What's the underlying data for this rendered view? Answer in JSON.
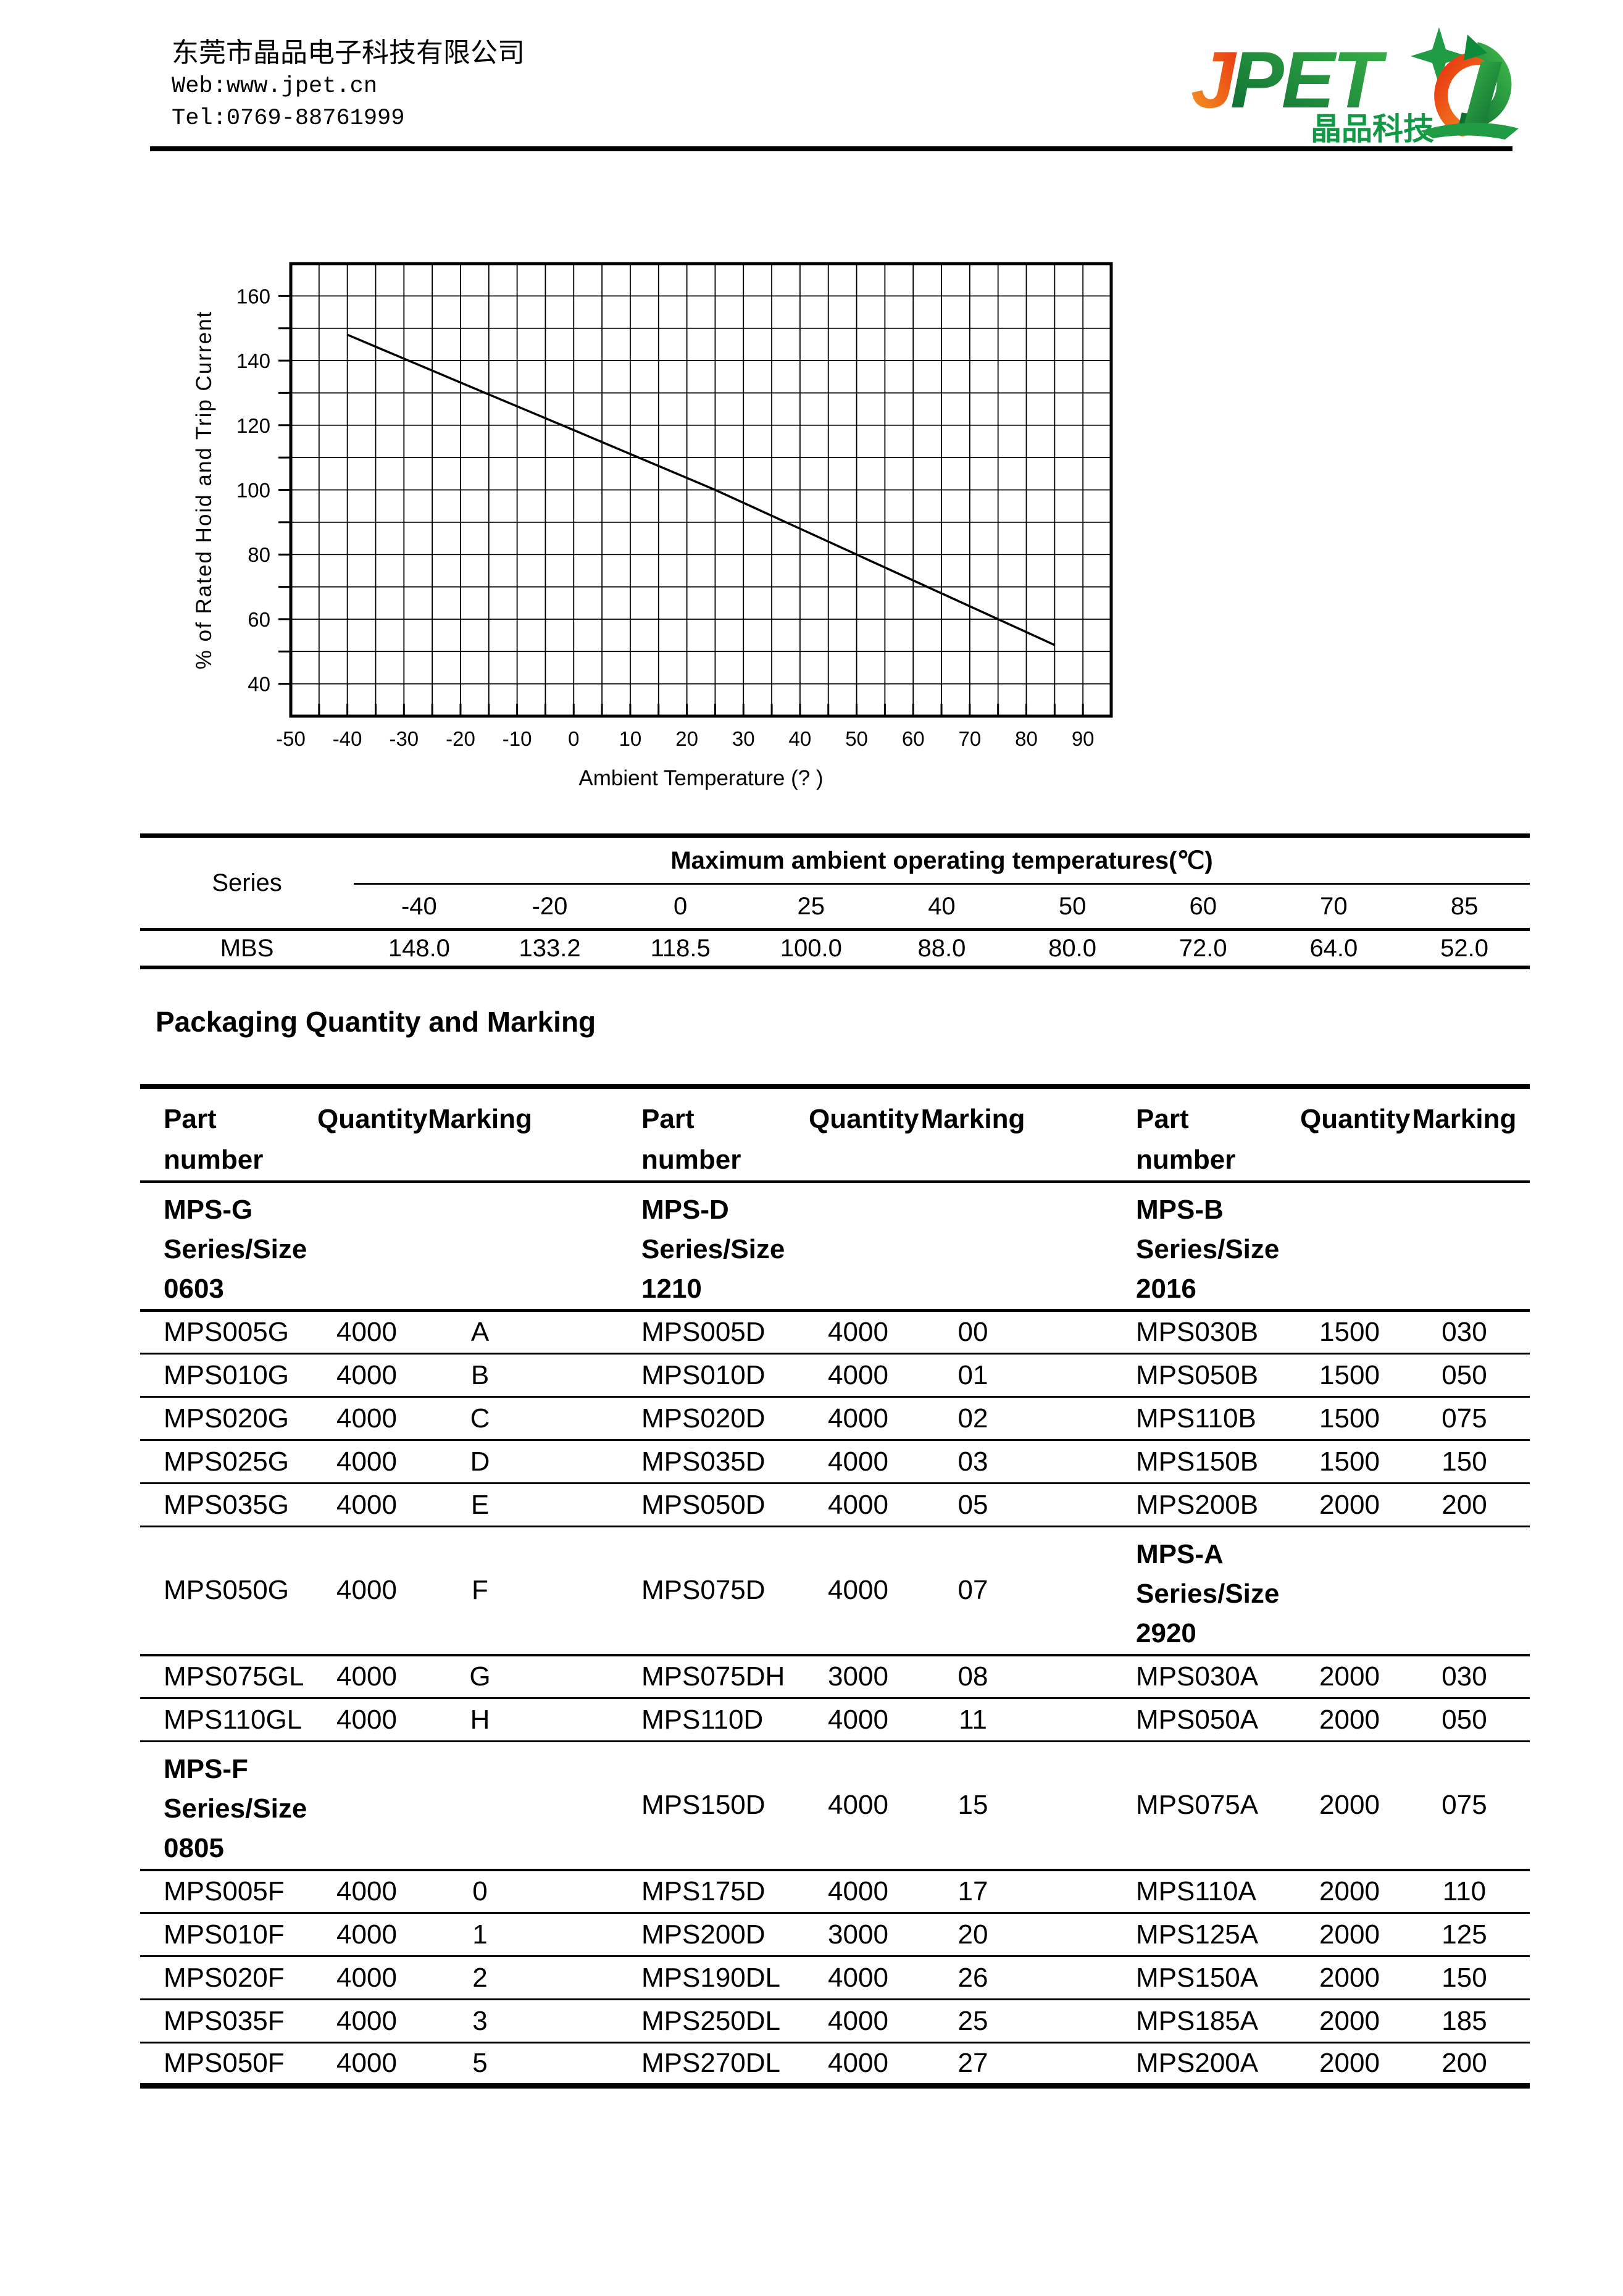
{
  "header": {
    "company": "东莞市晶品电子科技有限公司",
    "web": "Web:www.jpet.cn",
    "tel": "Tel:0769-88761999",
    "logo": {
      "wordmark_j": "J",
      "wordmark_pet": "PET",
      "cjk": "晶品科技",
      "colors": {
        "orange_start": "#e73312",
        "orange_end": "#f59a22",
        "green_start": "#0b6b31",
        "green_end": "#3cb54a",
        "cjk_green": "#119a46"
      }
    }
  },
  "chart_data": {
    "type": "line",
    "xlabel": "Ambient Temperature (? )",
    "ylabel": "% of Rated Hoid and Trip Current",
    "xlim": [
      -50,
      95
    ],
    "ylim": [
      30,
      170
    ],
    "xgrid_step": 5,
    "ygrid_step": 10,
    "xtick_labels": [
      -50,
      -40,
      -30,
      -20,
      -10,
      0,
      10,
      20,
      30,
      40,
      50,
      60,
      70,
      80,
      90
    ],
    "ytick_labels": [
      40,
      60,
      80,
      100,
      120,
      140,
      160
    ],
    "grid": "on",
    "series": [
      {
        "name": "derating-curve",
        "x": [
          -40,
          -20,
          0,
          25,
          40,
          50,
          60,
          70,
          85
        ],
        "y": [
          148.0,
          133.2,
          118.5,
          100.0,
          88.0,
          80.0,
          72.0,
          64.0,
          52.0
        ]
      }
    ]
  },
  "temp_table": {
    "series_header": "Series",
    "span_header": "Maximum ambient operating temperatures(℃)",
    "temps": [
      "-40",
      "-20",
      "0",
      "25",
      "40",
      "50",
      "60",
      "70",
      "85"
    ],
    "rows": [
      {
        "series": "MBS",
        "values": [
          "148.0",
          "133.2",
          "118.5",
          "100.0",
          "88.0",
          "80.0",
          "72.0",
          "64.0",
          "52.0"
        ]
      }
    ]
  },
  "sections": {
    "packaging_heading": "Packaging Quantity and Marking"
  },
  "packaging_table": {
    "column_headers": [
      "Part number",
      "Quantity",
      "Marking",
      "Part number",
      "Quantity",
      "Marking",
      "Part number",
      "Quantity",
      "Marking"
    ],
    "rows": [
      {
        "type": "group",
        "cells": [
          "MPS-G Series/Size 0603",
          "",
          "",
          "MPS-D Series/Size 1210",
          "",
          "",
          "MPS-B Series/Size 2016",
          "",
          ""
        ]
      },
      {
        "type": "data",
        "cells": [
          "MPS005G",
          "4000",
          "A",
          "MPS005D",
          "4000",
          "00",
          "MPS030B",
          "1500",
          "030"
        ]
      },
      {
        "type": "data",
        "cells": [
          "MPS010G",
          "4000",
          "B",
          "MPS010D",
          "4000",
          "01",
          "MPS050B",
          "1500",
          "050"
        ]
      },
      {
        "type": "data",
        "cells": [
          "MPS020G",
          "4000",
          "C",
          "MPS020D",
          "4000",
          "02",
          "MPS110B",
          "1500",
          "075"
        ]
      },
      {
        "type": "data",
        "cells": [
          "MPS025G",
          "4000",
          "D",
          "MPS035D",
          "4000",
          "03",
          "MPS150B",
          "1500",
          "150"
        ]
      },
      {
        "type": "data",
        "cells": [
          "MPS035G",
          "4000",
          "E",
          "MPS050D",
          "4000",
          "05",
          "MPS200B",
          "2000",
          "200"
        ]
      },
      {
        "type": "tall",
        "cells": [
          "MPS050G",
          "4000",
          "F",
          "MPS075D",
          "4000",
          "07",
          "MPS-A Series/Size 2920",
          "",
          ""
        ]
      },
      {
        "type": "data",
        "cells": [
          "MPS075GL",
          "4000",
          "G",
          "MPS075DH",
          "3000",
          "08",
          "MPS030A",
          "2000",
          "030"
        ]
      },
      {
        "type": "data",
        "cells": [
          "MPS110GL",
          "4000",
          "H",
          "MPS110D",
          "4000",
          "11",
          "MPS050A",
          "2000",
          "050"
        ]
      },
      {
        "type": "tall",
        "cells": [
          "MPS-F Series/Size 0805",
          "",
          "",
          "MPS150D",
          "4000",
          "15",
          "MPS075A",
          "2000",
          "075"
        ]
      },
      {
        "type": "data",
        "cells": [
          "MPS005F",
          "4000",
          "0",
          "MPS175D",
          "4000",
          "17",
          "MPS110A",
          "2000",
          "110"
        ]
      },
      {
        "type": "data",
        "cells": [
          "MPS010F",
          "4000",
          "1",
          "MPS200D",
          "3000",
          "20",
          "MPS125A",
          "2000",
          "125"
        ]
      },
      {
        "type": "data",
        "cells": [
          "MPS020F",
          "4000",
          "2",
          "MPS190DL",
          "4000",
          "26",
          "MPS150A",
          "2000",
          "150"
        ]
      },
      {
        "type": "data",
        "cells": [
          "MPS035F",
          "4000",
          "3",
          "MPS250DL",
          "4000",
          "25",
          "MPS185A",
          "2000",
          "185"
        ]
      },
      {
        "type": "data",
        "cells": [
          "MPS050F",
          "4000",
          "5",
          "MPS270DL",
          "4000",
          "27",
          "MPS200A",
          "2000",
          "200"
        ]
      }
    ]
  }
}
